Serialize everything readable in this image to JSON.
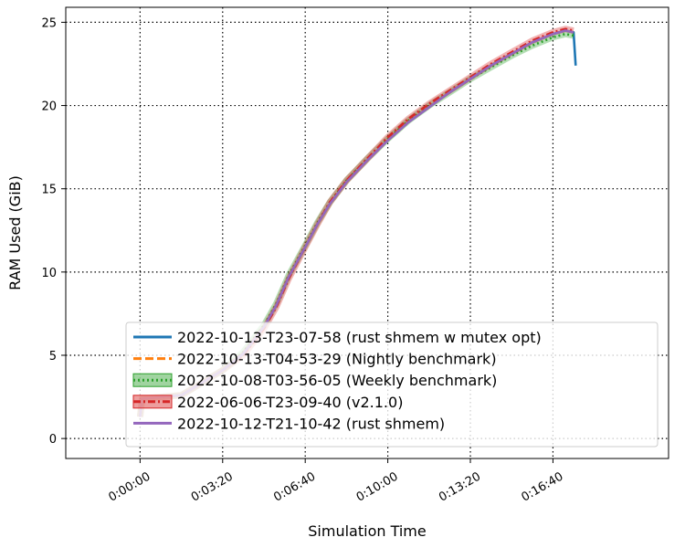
{
  "chart_data": {
    "type": "line",
    "title": "",
    "xlabel": "Simulation Time",
    "ylabel": "RAM Used (GiB)",
    "x_unit": "seconds",
    "xlim": [
      -180,
      1280
    ],
    "ylim": [
      -1.2,
      25.9
    ],
    "x_ticks": [
      {
        "value": 0,
        "label": "0:00:00"
      },
      {
        "value": 200,
        "label": "0:03:20"
      },
      {
        "value": 400,
        "label": "0:06:40"
      },
      {
        "value": 600,
        "label": "0:10:00"
      },
      {
        "value": 800,
        "label": "0:13:20"
      },
      {
        "value": 1000,
        "label": "0:16:40"
      }
    ],
    "y_ticks": [
      {
        "value": 0,
        "label": "0"
      },
      {
        "value": 5,
        "label": "5"
      },
      {
        "value": 10,
        "label": "10"
      },
      {
        "value": 15,
        "label": "15"
      },
      {
        "value": 20,
        "label": "20"
      },
      {
        "value": 25,
        "label": "25"
      }
    ],
    "grid": true,
    "legend_position": "lower-right",
    "series": [
      {
        "name": "2022-10-13-T23-07-58 (rust shmem w mutex opt)",
        "color": "#1f77b4",
        "style": "solid",
        "band": false,
        "x": [
          0,
          5,
          30,
          100,
          200,
          250,
          300,
          330,
          360,
          400,
          430,
          460,
          500,
          550,
          600,
          650,
          700,
          750,
          800,
          850,
          900,
          950,
          1000,
          1030,
          1050,
          1055
        ],
        "y": [
          1.3,
          2.4,
          2.45,
          2.6,
          4.1,
          5.1,
          6.7,
          8.0,
          9.7,
          11.5,
          12.9,
          14.1,
          15.4,
          16.7,
          17.9,
          19.0,
          19.9,
          20.8,
          21.6,
          22.4,
          23.1,
          23.8,
          24.3,
          24.5,
          24.4,
          22.4
        ]
      },
      {
        "name": "2022-10-13-T04-53-29 (Nightly benchmark)",
        "color": "#ff7f0e",
        "style": "dashed",
        "band": false,
        "x": [
          0,
          5,
          30,
          100,
          200,
          250,
          300,
          330,
          360,
          400,
          430,
          460,
          500,
          550,
          600,
          650,
          700,
          750,
          800,
          850,
          900,
          950,
          1000,
          1030,
          1050
        ],
        "y": [
          1.3,
          2.4,
          2.45,
          2.6,
          4.1,
          5.1,
          6.7,
          8.0,
          9.7,
          11.5,
          12.9,
          14.1,
          15.4,
          16.7,
          17.9,
          19.0,
          19.9,
          20.8,
          21.6,
          22.4,
          23.1,
          23.8,
          24.3,
          24.5,
          24.4
        ]
      },
      {
        "name": "2022-10-08-T03-56-05 (Weekly benchmark)",
        "color": "#2ca02c",
        "style": "dotted",
        "band": true,
        "x": [
          0,
          5,
          30,
          100,
          200,
          250,
          300,
          330,
          360,
          400,
          430,
          460,
          500,
          550,
          600,
          650,
          700,
          750,
          800,
          850,
          900,
          950,
          1000,
          1030,
          1050
        ],
        "y": [
          1.3,
          2.4,
          2.45,
          2.6,
          4.1,
          5.2,
          6.8,
          8.1,
          9.8,
          11.6,
          13.0,
          14.2,
          15.5,
          16.8,
          18.0,
          19.1,
          20.0,
          20.8,
          21.6,
          22.3,
          23.0,
          23.6,
          24.1,
          24.3,
          24.2
        ]
      },
      {
        "name": "2022-06-06-T23-09-40 (v2.1.0)",
        "color": "#d62728",
        "style": "dashdot",
        "band": true,
        "x": [
          0,
          5,
          30,
          100,
          200,
          250,
          300,
          330,
          360,
          400,
          430,
          460,
          500,
          550,
          600,
          650,
          700,
          750,
          800,
          850,
          900,
          950,
          1000,
          1030,
          1050
        ],
        "y": [
          1.3,
          2.4,
          2.45,
          2.6,
          4.1,
          5.0,
          6.6,
          7.9,
          9.6,
          11.5,
          12.9,
          14.2,
          15.5,
          16.8,
          18.1,
          19.2,
          20.1,
          20.9,
          21.7,
          22.5,
          23.2,
          23.9,
          24.4,
          24.6,
          24.5
        ]
      },
      {
        "name": "2022-10-12-T21-10-42 (rust shmem)",
        "color": "#9467bd",
        "style": "solid",
        "band": false,
        "x": [
          0,
          5,
          30,
          100,
          200,
          250,
          300,
          330,
          360,
          400,
          430,
          460,
          500,
          550,
          600,
          650,
          700,
          750,
          800,
          850,
          900,
          950,
          1000,
          1030,
          1050
        ],
        "y": [
          1.3,
          2.4,
          2.45,
          2.6,
          4.1,
          5.1,
          6.7,
          8.0,
          9.7,
          11.5,
          12.9,
          14.1,
          15.4,
          16.7,
          17.9,
          19.0,
          19.9,
          20.8,
          21.6,
          22.4,
          23.1,
          23.8,
          24.3,
          24.5,
          24.4
        ]
      }
    ]
  }
}
